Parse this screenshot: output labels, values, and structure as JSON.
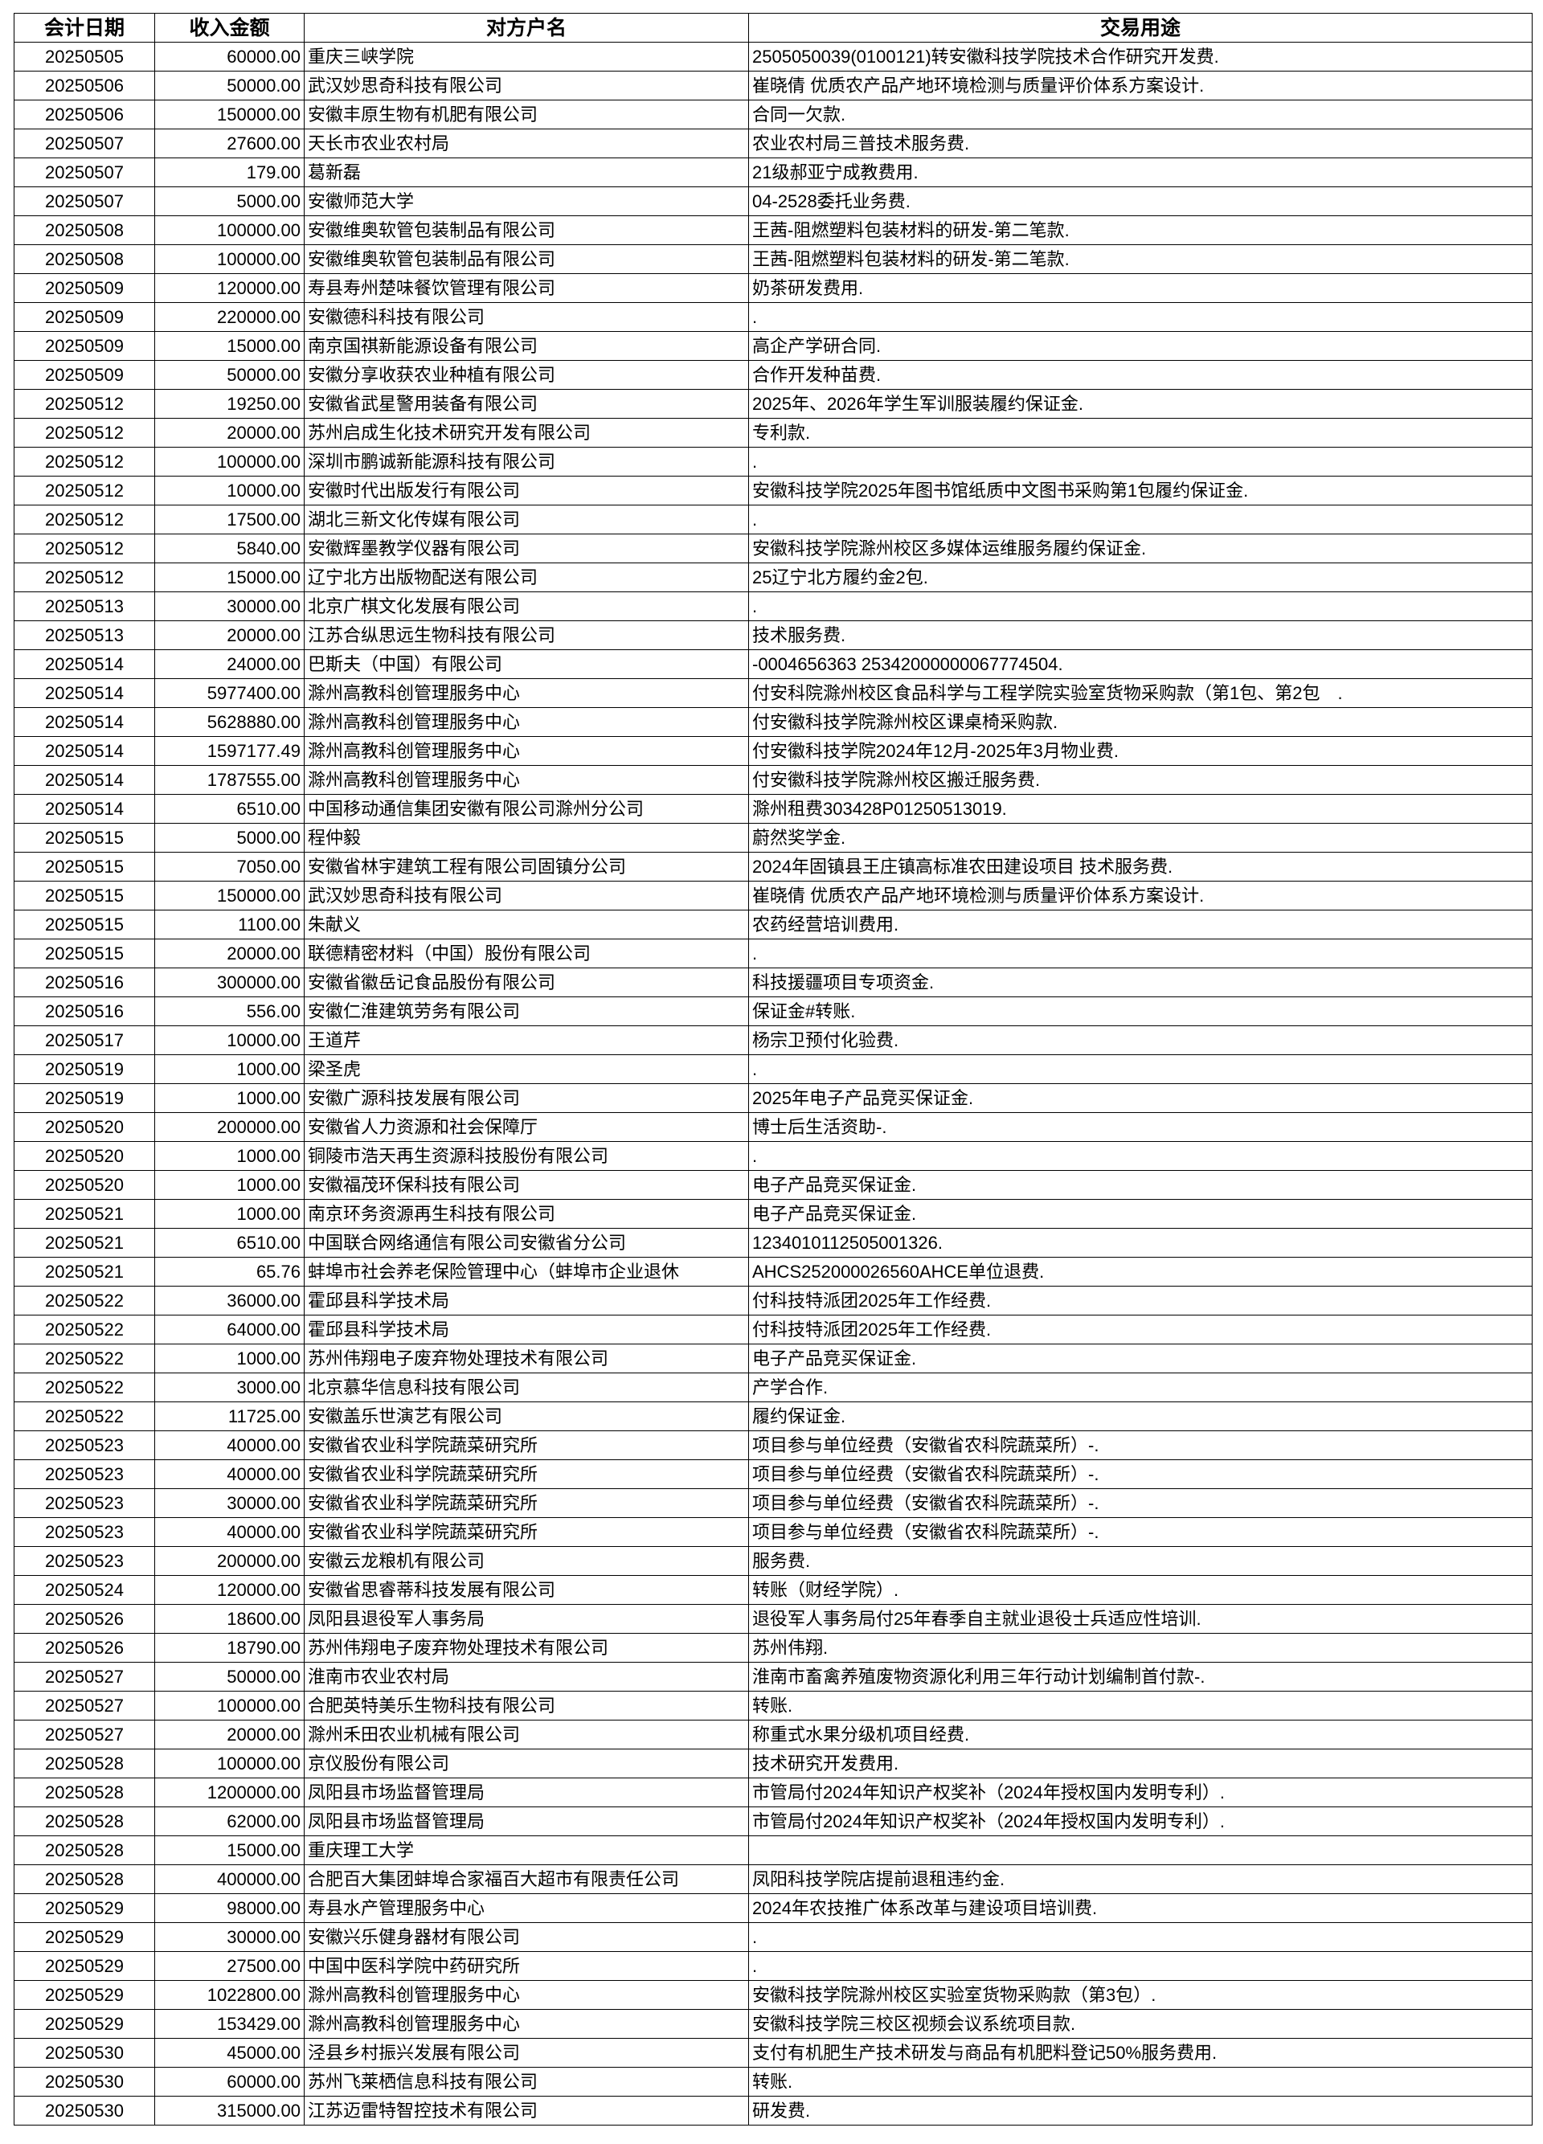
{
  "table": {
    "header": [
      "会计日期",
      "收入金额",
      "对方户名",
      "交易用途"
    ],
    "rows": [
      [
        "20250505",
        "60000.00",
        "重庆三峡学院",
        "2505050039(0100121)转安徽科技学院技术合作研究开发费."
      ],
      [
        "20250506",
        "50000.00",
        "武汉妙思奇科技有限公司",
        "崔晓倩 优质农产品产地环境检测与质量评价体系方案设计."
      ],
      [
        "20250506",
        "150000.00",
        "安徽丰原生物有机肥有限公司",
        "合同一欠款."
      ],
      [
        "20250507",
        "27600.00",
        "天长市农业农村局",
        "农业农村局三普技术服务费."
      ],
      [
        "20250507",
        "179.00",
        "葛新磊",
        "21级郝亚宁成教费用."
      ],
      [
        "20250507",
        "5000.00",
        "安徽师范大学",
        "04-2528委托业务费."
      ],
      [
        "20250508",
        "100000.00",
        "安徽维奥软管包装制品有限公司",
        "王茜-阻燃塑料包装材料的研发-第二笔款."
      ],
      [
        "20250508",
        "100000.00",
        "安徽维奥软管包装制品有限公司",
        "王茜-阻燃塑料包装材料的研发-第二笔款."
      ],
      [
        "20250509",
        "120000.00",
        "寿县寿州楚味餐饮管理有限公司",
        "奶茶研发费用."
      ],
      [
        "20250509",
        "220000.00",
        "安徽德科科技有限公司",
        "."
      ],
      [
        "20250509",
        "15000.00",
        "南京国祺新能源设备有限公司",
        "高企产学研合同."
      ],
      [
        "20250509",
        "50000.00",
        "安徽分享收获农业种植有限公司",
        "合作开发种苗费."
      ],
      [
        "20250512",
        "19250.00",
        "安徽省武星警用装备有限公司",
        "2025年、2026年学生军训服装履约保证金."
      ],
      [
        "20250512",
        "20000.00",
        "苏州启成生化技术研究开发有限公司",
        "专利款."
      ],
      [
        "20250512",
        "100000.00",
        "深圳市鹏诚新能源科技有限公司",
        "."
      ],
      [
        "20250512",
        "10000.00",
        "安徽时代出版发行有限公司",
        "安徽科技学院2025年图书馆纸质中文图书采购第1包履约保证金."
      ],
      [
        "20250512",
        "17500.00",
        "湖北三新文化传媒有限公司",
        "."
      ],
      [
        "20250512",
        "5840.00",
        "安徽辉墨教学仪器有限公司",
        "安徽科技学院滁州校区多媒体运维服务履约保证金."
      ],
      [
        "20250512",
        "15000.00",
        "辽宁北方出版物配送有限公司",
        "25辽宁北方履约金2包."
      ],
      [
        "20250513",
        "30000.00",
        "北京广棋文化发展有限公司",
        "."
      ],
      [
        "20250513",
        "20000.00",
        "江苏合纵思远生物科技有限公司",
        "技术服务费."
      ],
      [
        "20250514",
        "24000.00",
        "巴斯夫（中国）有限公司",
        "-0004656363 25342000000067774504."
      ],
      [
        "20250514",
        "5977400.00",
        "滁州高教科创管理服务中心",
        "付安科院滁州校区食品科学与工程学院实验室货物采购款（第1包、第2包　."
      ],
      [
        "20250514",
        "5628880.00",
        "滁州高教科创管理服务中心",
        "付安徽科技学院滁州校区课桌椅采购款."
      ],
      [
        "20250514",
        "1597177.49",
        "滁州高教科创管理服务中心",
        "付安徽科技学院2024年12月-2025年3月物业费."
      ],
      [
        "20250514",
        "1787555.00",
        "滁州高教科创管理服务中心",
        "付安徽科技学院滁州校区搬迁服务费."
      ],
      [
        "20250514",
        "6510.00",
        "中国移动通信集团安徽有限公司滁州分公司",
        "滁州租费303428P01250513019."
      ],
      [
        "20250515",
        "5000.00",
        "程仲毅",
        "蔚然奖学金."
      ],
      [
        "20250515",
        "7050.00",
        "安徽省林宇建筑工程有限公司固镇分公司",
        "2024年固镇县王庄镇高标准农田建设项目 技术服务费."
      ],
      [
        "20250515",
        "150000.00",
        "武汉妙思奇科技有限公司",
        "崔晓倩 优质农产品产地环境检测与质量评价体系方案设计."
      ],
      [
        "20250515",
        "1100.00",
        "朱献义",
        "农药经营培训费用."
      ],
      [
        "20250515",
        "20000.00",
        "联德精密材料（中国）股份有限公司",
        "."
      ],
      [
        "20250516",
        "300000.00",
        "安徽省徽岳记食品股份有限公司",
        "科技援疆项目专项资金."
      ],
      [
        "20250516",
        "556.00",
        "安徽仁淮建筑劳务有限公司",
        "保证金#转账."
      ],
      [
        "20250517",
        "10000.00",
        "王道芹",
        "杨宗卫预付化验费."
      ],
      [
        "20250519",
        "1000.00",
        "梁圣虎",
        "."
      ],
      [
        "20250519",
        "1000.00",
        "安徽广源科技发展有限公司",
        "2025年电子产品竞买保证金."
      ],
      [
        "20250520",
        "200000.00",
        "安徽省人力资源和社会保障厅",
        "博士后生活资助-."
      ],
      [
        "20250520",
        "1000.00",
        "铜陵市浩天再生资源科技股份有限公司",
        "."
      ],
      [
        "20250520",
        "1000.00",
        "安徽福茂环保科技有限公司",
        "电子产品竞买保证金."
      ],
      [
        "20250521",
        "1000.00",
        "南京环务资源再生科技有限公司",
        "电子产品竞买保证金."
      ],
      [
        "20250521",
        "6510.00",
        "中国联合网络通信有限公司安徽省分公司",
        "1234010112505001326."
      ],
      [
        "20250521",
        "65.76",
        "蚌埠市社会养老保险管理中心（蚌埠市企业退休",
        "AHCS252000026560AHCE单位退费."
      ],
      [
        "20250522",
        "36000.00",
        "霍邱县科学技术局",
        "付科技特派团2025年工作经费."
      ],
      [
        "20250522",
        "64000.00",
        "霍邱县科学技术局",
        "付科技特派团2025年工作经费."
      ],
      [
        "20250522",
        "1000.00",
        "苏州伟翔电子废弃物处理技术有限公司",
        "电子产品竞买保证金."
      ],
      [
        "20250522",
        "3000.00",
        "北京慕华信息科技有限公司",
        "产学合作."
      ],
      [
        "20250522",
        "11725.00",
        "安徽盖乐世演艺有限公司",
        "履约保证金."
      ],
      [
        "20250523",
        "40000.00",
        "安徽省农业科学院蔬菜研究所",
        "项目参与单位经费（安徽省农科院蔬菜所）-."
      ],
      [
        "20250523",
        "40000.00",
        "安徽省农业科学院蔬菜研究所",
        "项目参与单位经费（安徽省农科院蔬菜所）-."
      ],
      [
        "20250523",
        "30000.00",
        "安徽省农业科学院蔬菜研究所",
        "项目参与单位经费（安徽省农科院蔬菜所）-."
      ],
      [
        "20250523",
        "40000.00",
        "安徽省农业科学院蔬菜研究所",
        "项目参与单位经费（安徽省农科院蔬菜所）-."
      ],
      [
        "20250523",
        "200000.00",
        "安徽云龙粮机有限公司",
        "服务费."
      ],
      [
        "20250524",
        "120000.00",
        "安徽省思睿蒂科技发展有限公司",
        "转账（财经学院）."
      ],
      [
        "20250526",
        "18600.00",
        "凤阳县退役军人事务局",
        "退役军人事务局付25年春季自主就业退役士兵适应性培训."
      ],
      [
        "20250526",
        "18790.00",
        "苏州伟翔电子废弃物处理技术有限公司",
        "苏州伟翔."
      ],
      [
        "20250527",
        "50000.00",
        "淮南市农业农村局",
        "淮南市畜禽养殖废物资源化利用三年行动计划编制首付款-."
      ],
      [
        "20250527",
        "100000.00",
        "合肥英特美乐生物科技有限公司",
        "转账."
      ],
      [
        "20250527",
        "20000.00",
        "滁州禾田农业机械有限公司",
        "称重式水果分级机项目经费."
      ],
      [
        "20250528",
        "100000.00",
        "京仪股份有限公司",
        "技术研究开发费用."
      ],
      [
        "20250528",
        "1200000.00",
        "凤阳县市场监督管理局",
        "市管局付2024年知识产权奖补（2024年授权国内发明专利）."
      ],
      [
        "20250528",
        "62000.00",
        "凤阳县市场监督管理局",
        "市管局付2024年知识产权奖补（2024年授权国内发明专利）."
      ],
      [
        "20250528",
        "15000.00",
        "重庆理工大学",
        null
      ],
      [
        "20250528",
        "400000.00",
        "合肥百大集团蚌埠合家福百大超市有限责任公司",
        "凤阳科技学院店提前退租违约金."
      ],
      [
        "20250529",
        "98000.00",
        "寿县水产管理服务中心",
        "2024年农技推广体系改革与建设项目培训费."
      ],
      [
        "20250529",
        "30000.00",
        "安徽兴乐健身器材有限公司",
        "."
      ],
      [
        "20250529",
        "27500.00",
        "中国中医科学院中药研究所",
        "."
      ],
      [
        "20250529",
        "1022800.00",
        "滁州高教科创管理服务中心",
        "安徽科技学院滁州校区实验室货物采购款（第3包）."
      ],
      [
        "20250529",
        "153429.00",
        "滁州高教科创管理服务中心",
        "安徽科技学院三校区视频会议系统项目款."
      ],
      [
        "20250530",
        "45000.00",
        "泾县乡村振兴发展有限公司",
        "支付有机肥生产技术研发与商品有机肥料登记50%服务费用."
      ],
      [
        "20250530",
        "60000.00",
        "苏州飞莱栖信息科技有限公司",
        "转账."
      ],
      [
        "20250530",
        "315000.00",
        "江苏迈雷特智控技术有限公司",
        "研发费."
      ]
    ]
  }
}
